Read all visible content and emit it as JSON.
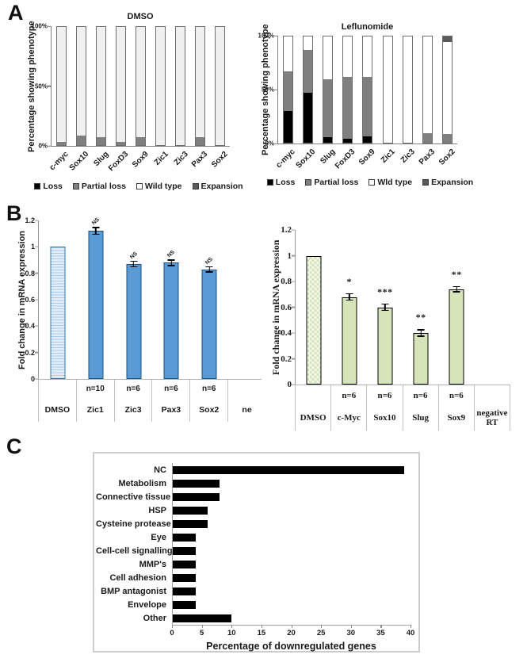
{
  "figure": {
    "panel_letters": {
      "a": "A",
      "b": "B",
      "c": "C"
    },
    "colors": {
      "loss": "#000000",
      "partial_loss": "#7f7f7f",
      "wild_type_left": "#f0f0f0",
      "wild_type_right": "#ffffff",
      "expansion": "#595959",
      "blue_bar": "#5b9bd5",
      "blue_bar_border": "#1f4e79",
      "blue_dmso_stripe_light": "#e4eefa",
      "green_bar": "#d7e3b8",
      "green_bar_border": "#000000",
      "black_bar": "#000000"
    }
  },
  "chart_data": [
    {
      "id": "dmso_phenotype",
      "type": "bar",
      "stacked": true,
      "title": "DMSO",
      "ylabel": "Percentage showing phenotype",
      "ylim": [
        0,
        100
      ],
      "yticks": [
        "0%",
        "50%",
        "100%"
      ],
      "categories": [
        "c-myc",
        "Sox10",
        "Slug",
        "FoxD3",
        "Sox9",
        "Zic1",
        "Zic3",
        "Pax3",
        "Sox2"
      ],
      "series": [
        {
          "name": "Loss",
          "values": [
            0,
            0,
            0,
            0,
            0,
            0,
            0,
            0,
            0
          ]
        },
        {
          "name": "Partial loss",
          "values": [
            3,
            8,
            7,
            3,
            7,
            0,
            0,
            7,
            0
          ]
        },
        {
          "name": "Wild type",
          "values": [
            97,
            92,
            93,
            97,
            93,
            100,
            100,
            93,
            100
          ]
        },
        {
          "name": "Expansion",
          "values": [
            0,
            0,
            0,
            0,
            0,
            0,
            0,
            0,
            0
          ]
        }
      ],
      "legend": [
        "Loss",
        "Partial loss",
        "Wild type",
        "Expansion"
      ],
      "legend_position": "bottom"
    },
    {
      "id": "leflunomide_phenotype",
      "type": "bar",
      "stacked": true,
      "title": "Leflunomide",
      "ylabel": "Percentage showing phenotype",
      "ylim": [
        0,
        100
      ],
      "yticks": [
        "0%",
        "50%",
        "100%"
      ],
      "categories": [
        "c-myc",
        "Sox10",
        "Slug",
        "FoxD3",
        "Sox9",
        "Zic1",
        "Zic3",
        "Pax3",
        "Sox2"
      ],
      "series": [
        {
          "name": "Loss",
          "values": [
            30,
            47,
            5,
            4,
            6,
            0,
            0,
            0,
            0
          ]
        },
        {
          "name": "Partial loss",
          "values": [
            37,
            40,
            55,
            58,
            56,
            0,
            0,
            9,
            8
          ]
        },
        {
          "name": "Wild type",
          "values": [
            33,
            13,
            40,
            38,
            38,
            100,
            100,
            91,
            87
          ]
        },
        {
          "name": "Expansion",
          "values": [
            0,
            0,
            0,
            0,
            0,
            0,
            0,
            0,
            5
          ]
        }
      ],
      "legend": [
        "Loss",
        "Partial loss",
        "Wld type",
        "Expansion"
      ],
      "legend_position": "bottom"
    },
    {
      "id": "qpcr_blue",
      "type": "bar",
      "ylabel": "Fold change in mRNA expression",
      "ylim": [
        0,
        1.2
      ],
      "yticks": [
        0,
        0.2,
        0.4,
        0.6,
        0.8,
        1,
        1.2
      ],
      "categories": [
        "DMSO",
        "Zic1",
        "Zic3",
        "Pax3",
        "Sox2",
        "ne"
      ],
      "n_labels": [
        "",
        "n=10",
        "n=6",
        "n=6",
        "n=6",
        ""
      ],
      "values": [
        1.0,
        1.12,
        0.87,
        0.88,
        0.83,
        null
      ],
      "errors": [
        0,
        0.03,
        0.025,
        0.025,
        0.025,
        null
      ],
      "significance": [
        "",
        "NS",
        "NS",
        "NS",
        "NS",
        ""
      ]
    },
    {
      "id": "qpcr_green",
      "type": "bar",
      "ylabel": "Fold change in mRNA expression",
      "ylim": [
        0,
        1.2
      ],
      "yticks": [
        0,
        0.2,
        0.4,
        0.6,
        0.8,
        1,
        1.2
      ],
      "categories": [
        "DMSO",
        "c-Myc",
        "Sox10",
        "Slug",
        "Sox9",
        "negative RT"
      ],
      "n_labels": [
        "",
        "n=6",
        "n=6",
        "n=6",
        "n=6",
        ""
      ],
      "values": [
        1.0,
        0.68,
        0.6,
        0.4,
        0.74,
        null
      ],
      "errors": [
        0,
        0.03,
        0.03,
        0.03,
        0.025,
        null
      ],
      "significance": [
        "",
        "*",
        "***",
        "**",
        "**",
        ""
      ]
    },
    {
      "id": "downregulated_genes",
      "type": "bar",
      "orientation": "horizontal",
      "xlabel": "Percentage of downregulated genes",
      "xlim": [
        0,
        40
      ],
      "xticks": [
        0,
        5,
        10,
        15,
        20,
        25,
        30,
        35,
        40
      ],
      "categories": [
        "NC",
        "Metabolism",
        "Connective tissue",
        "HSP",
        "Cysteine protease",
        "Eye",
        "Cell-cell signalling",
        "MMP's",
        "Cell adhesion",
        "BMP antagonist",
        "Envelope",
        "Other"
      ],
      "values": [
        39,
        8,
        8,
        6,
        6,
        4,
        4,
        4,
        4,
        4,
        4,
        10
      ]
    }
  ]
}
